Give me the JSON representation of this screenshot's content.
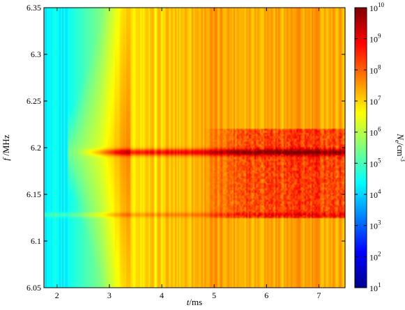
{
  "chart_data": {
    "type": "heatmap",
    "title": "",
    "x_label": {
      "italic": "t",
      "rest": "/ms"
    },
    "y_label": {
      "italic": "f",
      "rest": " /MHz"
    },
    "x_range": [
      1.75,
      7.5
    ],
    "y_range": [
      6.05,
      6.35
    ],
    "x_ticks": [
      {
        "value": 2,
        "label": "2"
      },
      {
        "value": 3,
        "label": "3"
      },
      {
        "value": 4,
        "label": "4"
      },
      {
        "value": 5,
        "label": "5"
      },
      {
        "value": 6,
        "label": "6"
      },
      {
        "value": 7,
        "label": "7"
      }
    ],
    "y_ticks": [
      {
        "value": 6.05,
        "label": "6.05"
      },
      {
        "value": 6.1,
        "label": "6.1"
      },
      {
        "value": 6.15,
        "label": "6.15"
      },
      {
        "value": 6.2,
        "label": "6.2"
      },
      {
        "value": 6.25,
        "label": "6.25"
      },
      {
        "value": 6.3,
        "label": "6.3"
      },
      {
        "value": 6.35,
        "label": "6.35"
      }
    ],
    "colorbar": {
      "label": {
        "base": "N",
        "sub": "e",
        "rest": "/cm",
        "sup": "-3"
      },
      "scale": "log",
      "range_exponent": [
        1,
        10
      ],
      "ticks": [
        {
          "exp": 1,
          "base": "10",
          "sup": "1"
        },
        {
          "exp": 2,
          "base": "10",
          "sup": "2"
        },
        {
          "exp": 3,
          "base": "10",
          "sup": "3"
        },
        {
          "exp": 4,
          "base": "10",
          "sup": "4"
        },
        {
          "exp": 5,
          "base": "10",
          "sup": "5"
        },
        {
          "exp": 6,
          "base": "10",
          "sup": "6"
        },
        {
          "exp": 7,
          "base": "10",
          "sup": "7"
        },
        {
          "exp": 8,
          "base": "10",
          "sup": "8"
        },
        {
          "exp": 9,
          "base": "10",
          "sup": "9"
        },
        {
          "exp": 10,
          "base": "10",
          "sup": "10"
        }
      ],
      "colormap": [
        "#00008f",
        "#0000ff",
        "#0080ff",
        "#00ffff",
        "#80ff80",
        "#ffff00",
        "#ff8000",
        "#ff0000",
        "#800000"
      ]
    },
    "features": {
      "resonance_line_f": 6.195,
      "resonance_onset_t": 2.35,
      "secondary_line_f": 6.128,
      "dense_band_f": [
        6.125,
        6.22
      ],
      "dense_band_onset_t": 5.0
    }
  }
}
